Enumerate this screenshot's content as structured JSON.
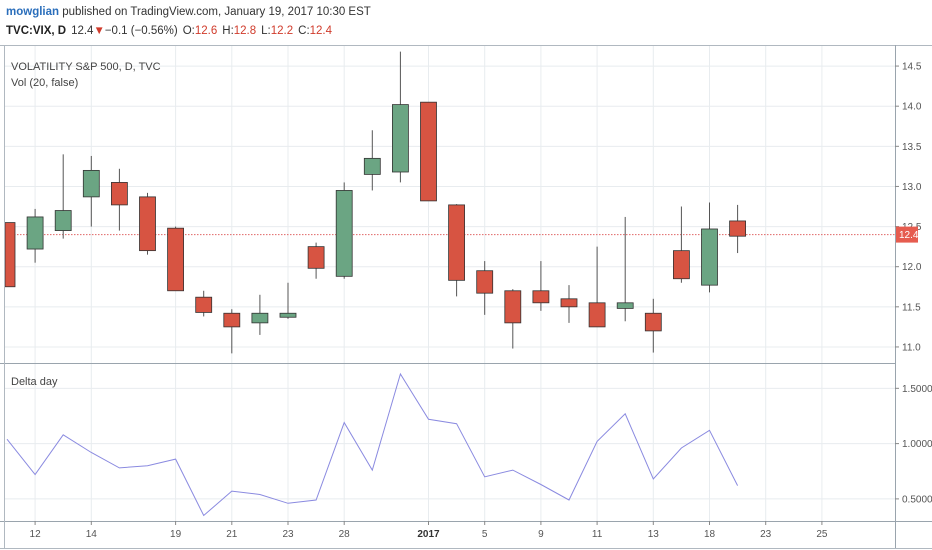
{
  "header": {
    "user": "mowglian",
    "published_text": " published on TradingView.com, January 19, 2017 10:30 EST",
    "symbol": "TVC:VIX, D",
    "last": "12.4",
    "change_arrow": "▼",
    "change": "−0.1 (−0.56%)",
    "o_label": "O:",
    "o_value": "12.6",
    "h_label": "H:",
    "h_value": "12.8",
    "l_label": "L:",
    "l_value": "12.2",
    "c_label": "C:",
    "c_value": "12.4"
  },
  "main_pane": {
    "title": "VOLATILITY S&P 500, D, TVC",
    "subtitle": "Vol (20, false)",
    "price_badge": "12.4"
  },
  "lower_pane": {
    "title": "Delta day"
  },
  "colors": {
    "up": "#6ba583",
    "down": "#d75442",
    "wick": "#555555",
    "grid": "#e8ecef",
    "line": "#8a8ae0",
    "price_line": "#e06666",
    "badge": "#e65c4f"
  },
  "chart_data": [
    {
      "type": "candlestick",
      "title": "VOLATILITY S&P 500, D, TVC",
      "y_ticks": [
        "11.0",
        "11.5",
        "12.0",
        "12.5",
        "13.0",
        "13.5",
        "14.0",
        "14.5"
      ],
      "ylim": [
        10.8,
        14.75
      ],
      "last_price": 12.4,
      "candles": [
        {
          "o": 12.55,
          "h": 12.55,
          "l": 11.75,
          "c": 11.75
        },
        {
          "o": 12.22,
          "h": 12.72,
          "l": 12.05,
          "c": 12.62
        },
        {
          "o": 12.45,
          "h": 13.4,
          "l": 12.35,
          "c": 12.7
        },
        {
          "o": 12.87,
          "h": 13.38,
          "l": 12.5,
          "c": 13.2
        },
        {
          "o": 13.05,
          "h": 13.22,
          "l": 12.45,
          "c": 12.77
        },
        {
          "o": 12.87,
          "h": 12.92,
          "l": 12.15,
          "c": 12.2
        },
        {
          "o": 12.48,
          "h": 12.5,
          "l": 11.7,
          "c": 11.7
        },
        {
          "o": 11.62,
          "h": 11.7,
          "l": 11.38,
          "c": 11.43
        },
        {
          "o": 11.42,
          "h": 11.47,
          "l": 10.92,
          "c": 11.25
        },
        {
          "o": 11.3,
          "h": 11.65,
          "l": 11.15,
          "c": 11.42
        },
        {
          "o": 11.37,
          "h": 11.8,
          "l": 11.35,
          "c": 11.42
        },
        {
          "o": 12.25,
          "h": 12.3,
          "l": 11.85,
          "c": 11.98
        },
        {
          "o": 11.88,
          "h": 13.05,
          "l": 11.85,
          "c": 12.95
        },
        {
          "o": 13.15,
          "h": 13.7,
          "l": 12.95,
          "c": 13.35
        },
        {
          "o": 13.18,
          "h": 14.68,
          "l": 13.05,
          "c": 14.02
        },
        {
          "o": 14.05,
          "h": 14.05,
          "l": 12.82,
          "c": 12.82
        },
        {
          "o": 12.77,
          "h": 12.78,
          "l": 11.63,
          "c": 11.83
        },
        {
          "o": 11.95,
          "h": 12.07,
          "l": 11.4,
          "c": 11.67
        },
        {
          "o": 11.7,
          "h": 11.72,
          "l": 10.98,
          "c": 11.3
        },
        {
          "o": 11.7,
          "h": 12.07,
          "l": 11.45,
          "c": 11.55
        },
        {
          "o": 11.6,
          "h": 11.77,
          "l": 11.3,
          "c": 11.5
        },
        {
          "o": 11.55,
          "h": 12.25,
          "l": 11.25,
          "c": 11.25
        },
        {
          "o": 11.48,
          "h": 12.62,
          "l": 11.32,
          "c": 11.55
        },
        {
          "o": 11.42,
          "h": 11.6,
          "l": 10.93,
          "c": 11.2
        },
        {
          "o": 12.2,
          "h": 12.75,
          "l": 11.8,
          "c": 11.85
        },
        {
          "o": 11.77,
          "h": 12.8,
          "l": 11.68,
          "c": 12.47
        },
        {
          "o": 12.57,
          "h": 12.77,
          "l": 12.17,
          "c": 12.38
        }
      ]
    },
    {
      "type": "line",
      "title": "Delta day",
      "y_ticks": [
        "0.5000",
        "1.0000",
        "1.5000"
      ],
      "ylim": [
        0.3,
        1.72
      ],
      "values": [
        1.04,
        0.72,
        1.08,
        0.92,
        0.78,
        0.8,
        0.86,
        0.35,
        0.57,
        0.54,
        0.46,
        0.49,
        1.19,
        0.76,
        1.63,
        1.22,
        1.18,
        0.7,
        0.76,
        0.63,
        0.49,
        1.02,
        1.27,
        0.68,
        0.96,
        1.12,
        0.62
      ]
    }
  ],
  "x_axis": {
    "ticks": [
      {
        "slot": 1,
        "label": "12",
        "bold": false
      },
      {
        "slot": 3,
        "label": "14",
        "bold": false
      },
      {
        "slot": 6,
        "label": "19",
        "bold": false
      },
      {
        "slot": 8,
        "label": "21",
        "bold": false
      },
      {
        "slot": 10,
        "label": "23",
        "bold": false
      },
      {
        "slot": 12,
        "label": "28",
        "bold": false
      },
      {
        "slot": 15,
        "label": "2017",
        "bold": true
      },
      {
        "slot": 17,
        "label": "5",
        "bold": false
      },
      {
        "slot": 19,
        "label": "9",
        "bold": false
      },
      {
        "slot": 21,
        "label": "11",
        "bold": false
      },
      {
        "slot": 23,
        "label": "13",
        "bold": false
      },
      {
        "slot": 25,
        "label": "18",
        "bold": false
      },
      {
        "slot": 27,
        "label": "23",
        "bold": false
      },
      {
        "slot": 29,
        "label": "25",
        "bold": false
      }
    ]
  }
}
